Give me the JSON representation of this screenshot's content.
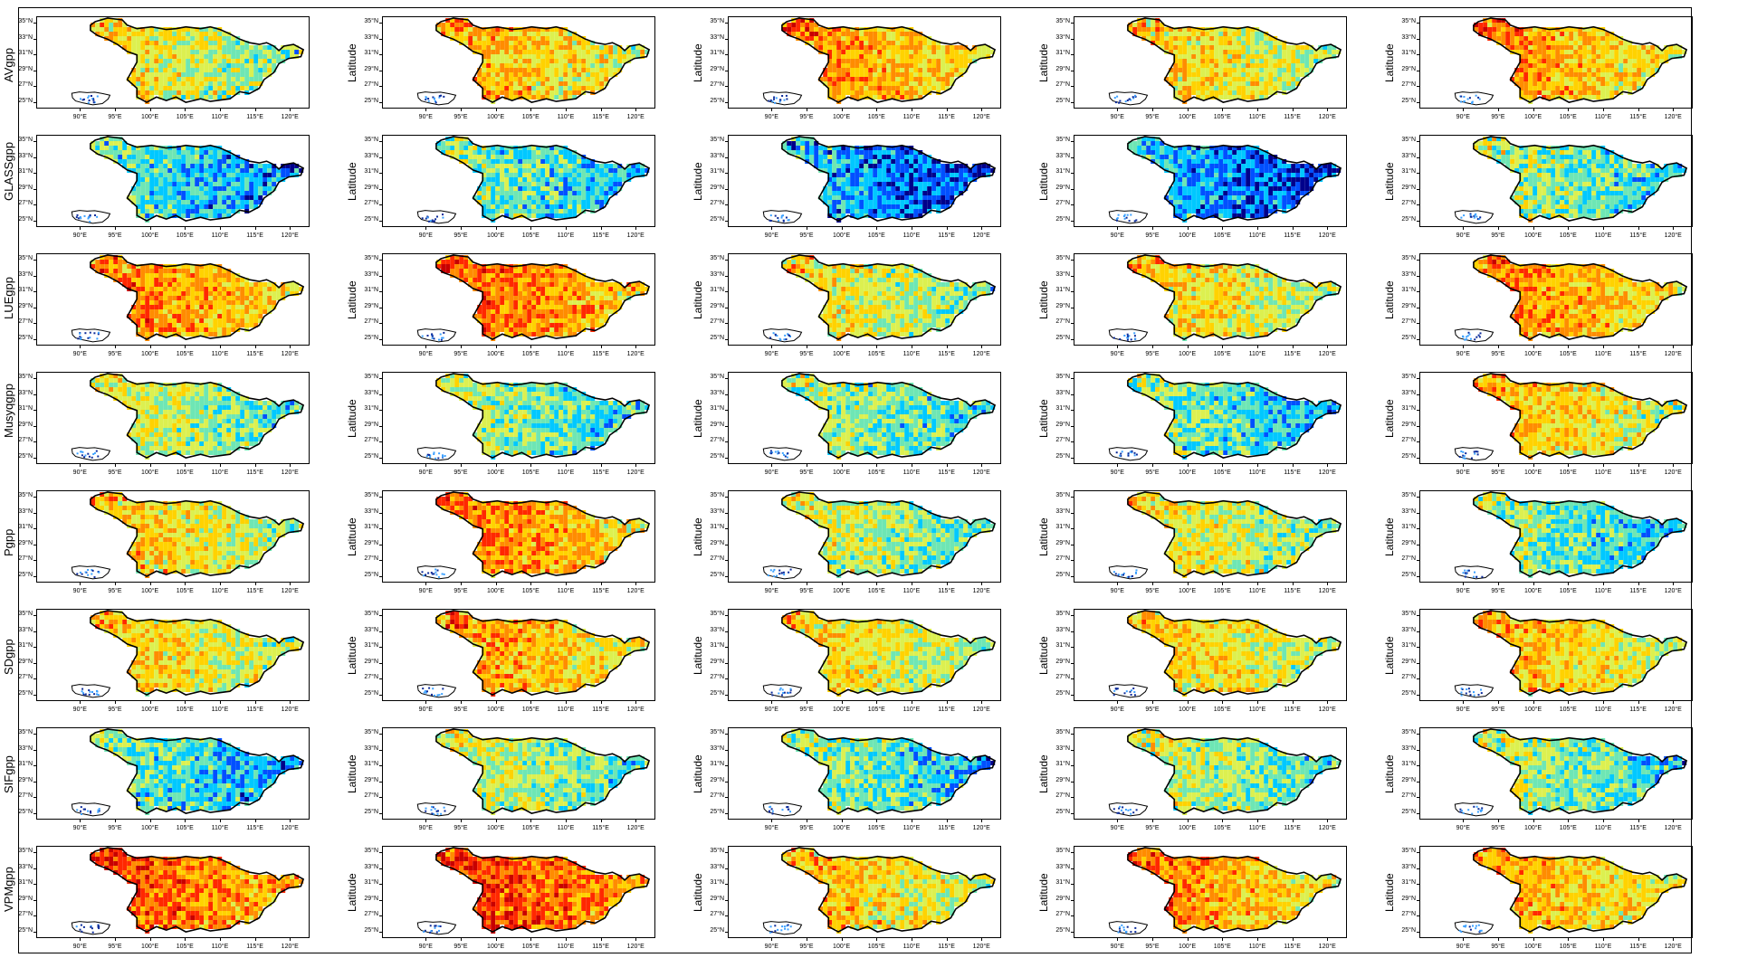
{
  "figure": {
    "row_labels": [
      "AVgpp",
      "GLASSgpp",
      "LUEgpp",
      "Musyqgpp",
      "Pgpp",
      "SDgpp",
      "SIFgpp",
      "VPMgpp"
    ],
    "y_axis_label": "Latitude",
    "y_ticks": [
      "35°N",
      "33°N",
      "31°N",
      "29°N",
      "27°N",
      "25°N"
    ],
    "x_ticks": [
      "90°E",
      "95°E",
      "100°E",
      "105°E",
      "110°E",
      "115°E",
      "120°E"
    ],
    "columns": 5,
    "colormap": [
      "#00008b",
      "#0050ff",
      "#00c8ff",
      "#6ee6b4",
      "#dcf050",
      "#ffd200",
      "#ff8c00",
      "#ff2800",
      "#c80000"
    ],
    "panel_warmth": [
      [
        0.55,
        0.65,
        0.7,
        0.6,
        0.68
      ],
      [
        0.35,
        0.4,
        0.25,
        0.25,
        0.45
      ],
      [
        0.72,
        0.75,
        0.55,
        0.6,
        0.7
      ],
      [
        0.5,
        0.45,
        0.45,
        0.4,
        0.62
      ],
      [
        0.6,
        0.72,
        0.5,
        0.55,
        0.42
      ],
      [
        0.6,
        0.68,
        0.58,
        0.6,
        0.63
      ],
      [
        0.38,
        0.5,
        0.42,
        0.48,
        0.45
      ],
      [
        0.78,
        0.82,
        0.62,
        0.7,
        0.66
      ]
    ]
  }
}
